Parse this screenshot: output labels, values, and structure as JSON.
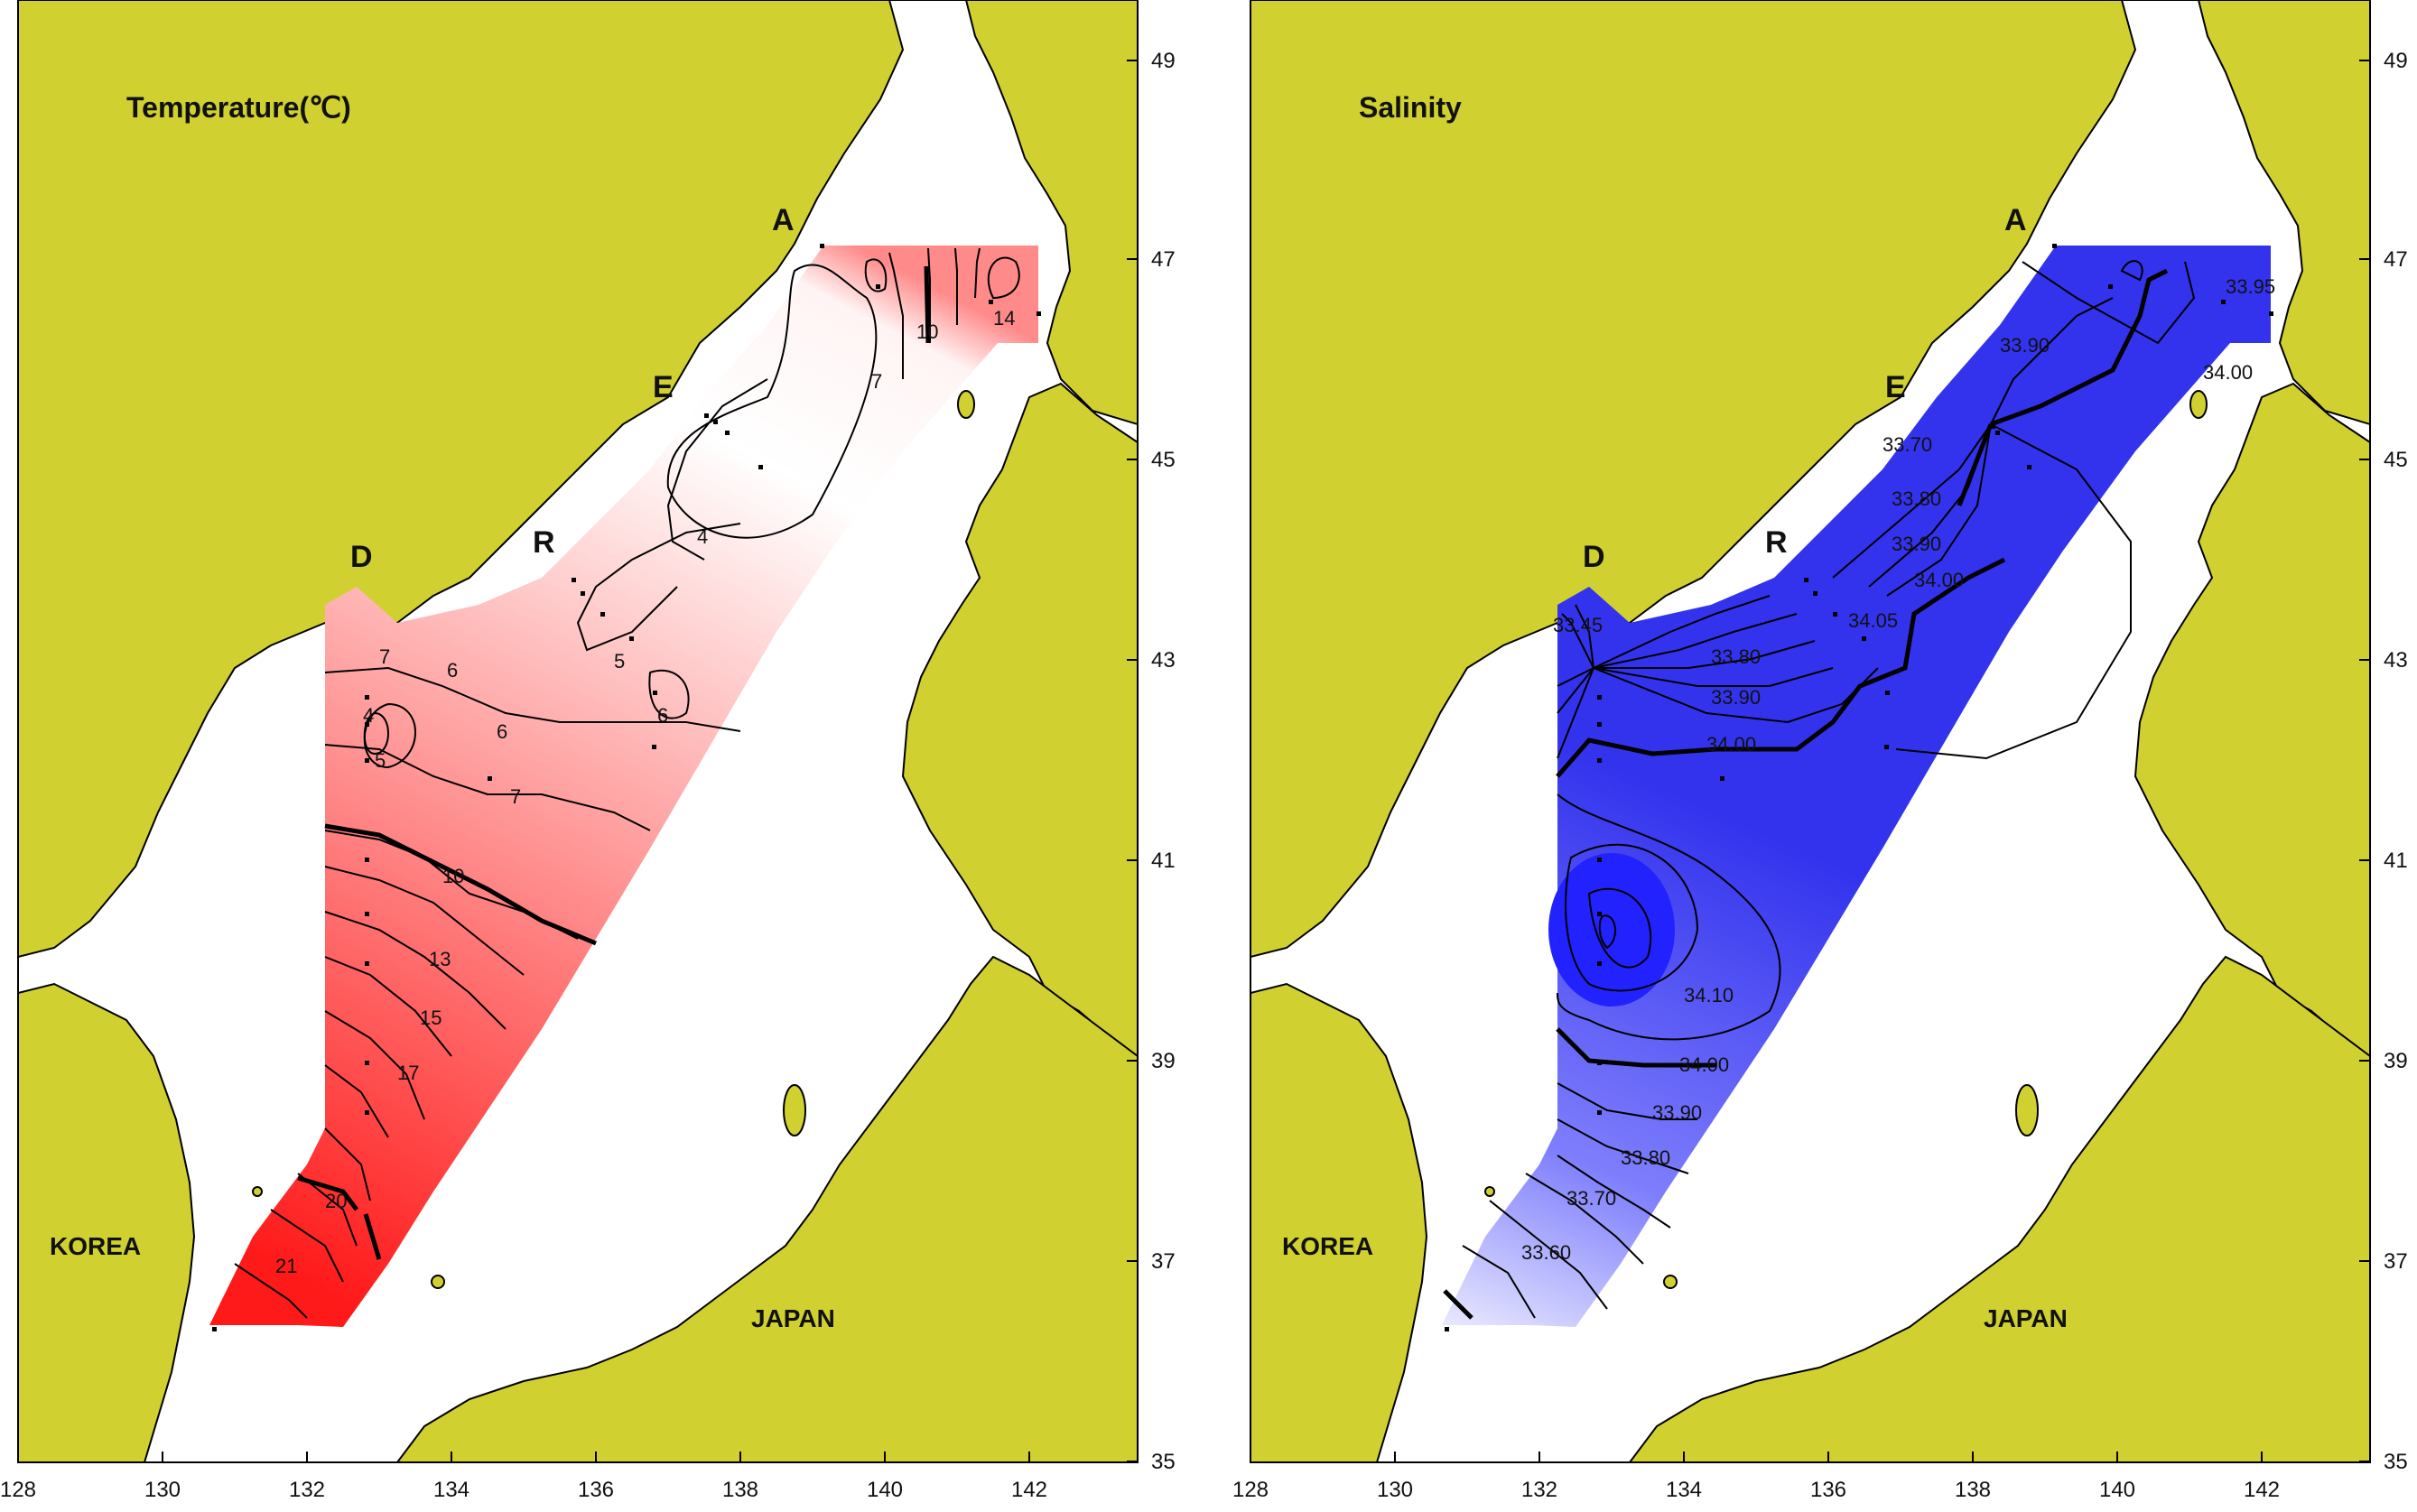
{
  "colors": {
    "land": "#d0d030",
    "sea": "#ffffff",
    "coast": "#000000",
    "temperature_warm": "#ff1a1a",
    "temperature_cold": "#ffffff",
    "salinity_high": "#1a1aff",
    "salinity_low": "#ffffff",
    "contour": "#000000"
  },
  "panels": [
    {
      "id": "temperature",
      "title": "Temperature(℃)",
      "x_ticks": [
        "128",
        "130",
        "132",
        "134",
        "136",
        "138",
        "140",
        "142"
      ],
      "y_ticks": [
        "49",
        "47",
        "45",
        "43",
        "41",
        "39",
        "37",
        "35"
      ],
      "stations": [
        "A",
        "E",
        "R",
        "D"
      ],
      "countries": [
        "KOREA",
        "JAPAN"
      ],
      "contour_labels": [
        "4",
        "4",
        "5",
        "5",
        "6",
        "6",
        "6",
        "7",
        "7",
        "7",
        "10",
        "10",
        "13",
        "15",
        "17",
        "20",
        "21",
        "14"
      ]
    },
    {
      "id": "salinity",
      "title": "Salinity",
      "x_ticks": [
        "128",
        "130",
        "132",
        "134",
        "136",
        "138",
        "140",
        "142"
      ],
      "y_ticks": [
        "49",
        "47",
        "45",
        "43",
        "41",
        "39",
        "37",
        "35"
      ],
      "stations": [
        "A",
        "E",
        "R",
        "D"
      ],
      "countries": [
        "KOREA",
        "JAPAN"
      ],
      "contour_labels": [
        "33.90",
        "33.95",
        "34.00",
        "33.70",
        "33.80",
        "33.90",
        "34.00",
        "34.05",
        "33.45",
        "33.80",
        "33.90",
        "34.00",
        "34.10",
        "34.00",
        "33.90",
        "33.80",
        "33.70",
        "33.60"
      ]
    }
  ]
}
